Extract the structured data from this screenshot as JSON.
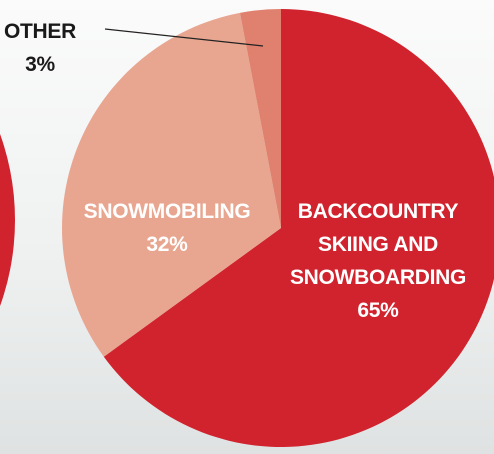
{
  "chart_data": {
    "type": "pie",
    "categories": [
      "BACKCOUNTRY SKIING AND SNOWBOARDING",
      "SNOWMOBILING",
      "OTHER"
    ],
    "values": [
      65,
      32,
      3
    ],
    "value_labels": [
      "65%",
      "32%",
      "3%"
    ],
    "colors": [
      "#d0232e",
      "#e8a690",
      "#e0806e"
    ]
  }
}
